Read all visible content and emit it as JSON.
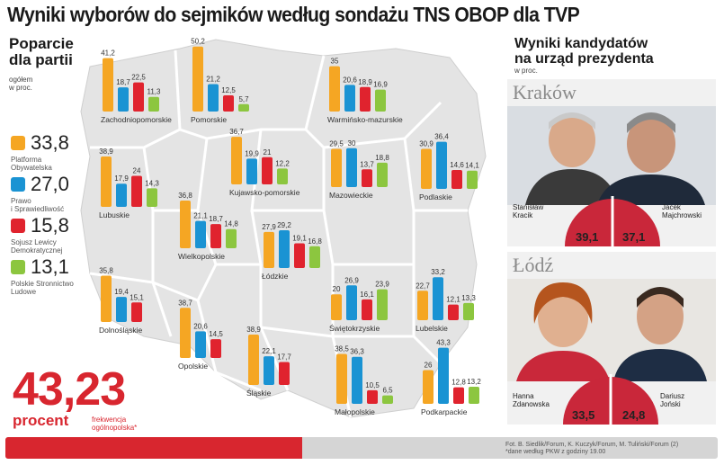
{
  "title": "Wyniki wyborów do sejmików według sondażu TNS OBOP dla TVP",
  "left_heading": [
    "Poparcie",
    "dla partii"
  ],
  "left_unit": [
    "ogółem",
    "w proc."
  ],
  "colors": {
    "po": "#f5a623",
    "pis": "#1a93d3",
    "sld": "#e0232e",
    "psl": "#8cc63f",
    "accent": "#d8262f"
  },
  "legend": [
    {
      "value": "33,8",
      "name": [
        "Platforma",
        "Obywatelska"
      ],
      "color": "#f5a623"
    },
    {
      "value": "27,0",
      "name": [
        "Prawo",
        "i Sprawiedliwość"
      ],
      "color": "#1a93d3"
    },
    {
      "value": "15,8",
      "name": [
        "Sojusz Lewicy",
        "Demokratycznej"
      ],
      "color": "#e0232e"
    },
    {
      "value": "13,1",
      "name": [
        "Polskie Stronnictwo",
        "Ludowe"
      ],
      "color": "#8cc63f"
    }
  ],
  "chart_data": {
    "type": "bar",
    "title": "Poparcie dla partii",
    "ylabel": "w proc.",
    "series_names": [
      "Platforma Obywatelska",
      "Prawo i Sprawiedliwość",
      "Sojusz Lewicy Demokratycznej",
      "Polskie Stronnictwo Ludowe"
    ],
    "regions": [
      {
        "name": "Zachodniopomorskie",
        "values": [
          41.2,
          18.7,
          22.5,
          11.3
        ],
        "labels": [
          "41,2",
          "18,7",
          "22,5",
          "11,3"
        ]
      },
      {
        "name": "Pomorskie",
        "values": [
          50.2,
          21.2,
          12.5,
          5.7
        ],
        "labels": [
          "50,2",
          "21,2",
          "12,5",
          "5,7"
        ]
      },
      {
        "name": "Warmińsko-mazurskie",
        "values": [
          35,
          20.6,
          18.9,
          16.9
        ],
        "labels": [
          "35",
          "20,6",
          "18,9",
          "16,9"
        ]
      },
      {
        "name": "Lubuskie",
        "values": [
          38.9,
          17.9,
          24,
          14.3
        ],
        "labels": [
          "38,9",
          "17,9",
          "24",
          "14,3"
        ]
      },
      {
        "name": "Kujawsko-pomorskie",
        "values": [
          36.7,
          19.9,
          21,
          12.2
        ],
        "labels": [
          "36,7",
          "19,9",
          "21",
          "12,2"
        ]
      },
      {
        "name": "Mazowieckie",
        "values": [
          29.5,
          30,
          13.7,
          18.8
        ],
        "labels": [
          "29,5",
          "30",
          "13,7",
          "18,8"
        ]
      },
      {
        "name": "Podlaskie",
        "values": [
          30.9,
          36.4,
          14.6,
          14.1
        ],
        "labels": [
          "30,9",
          "36,4",
          "14,6",
          "14,1"
        ]
      },
      {
        "name": "Wielkopolskie",
        "values": [
          36.8,
          21.1,
          18.7,
          14.8
        ],
        "labels": [
          "36,8",
          "21,1",
          "18,7",
          "14,8"
        ]
      },
      {
        "name": "Łódzkie",
        "values": [
          27.9,
          29.2,
          19.1,
          16.8
        ],
        "labels": [
          "27,9",
          "29,2",
          "19,1",
          "16,8"
        ]
      },
      {
        "name": "Dolnośląskie",
        "values": [
          35.8,
          19.4,
          15.1,
          null
        ],
        "labels": [
          "35,8",
          "19,4",
          "15,1",
          ""
        ]
      },
      {
        "name": "Świętokrzyskie",
        "values": [
          20,
          26.9,
          16.1,
          23.9
        ],
        "labels": [
          "20",
          "26,9",
          "16,1",
          "23,9"
        ]
      },
      {
        "name": "Lubelskie",
        "values": [
          22.7,
          33.2,
          12.1,
          13.3
        ],
        "labels": [
          "22,7",
          "33,2",
          "12,1",
          "13,3"
        ]
      },
      {
        "name": "Opolskie",
        "values": [
          38.7,
          20.6,
          14.5,
          null
        ],
        "labels": [
          "38,7",
          "20,6",
          "14,5",
          ""
        ]
      },
      {
        "name": "Śląskie",
        "values": [
          38.9,
          22.1,
          17.7,
          null
        ],
        "labels": [
          "38,9",
          "22,1",
          "17,7",
          ""
        ]
      },
      {
        "name": "Małopolskie",
        "values": [
          38.5,
          36.3,
          10.5,
          6.5
        ],
        "labels": [
          "38,5",
          "36,3",
          "10,5",
          "6,5"
        ]
      },
      {
        "name": "Podkarpackie",
        "values": [
          26,
          43.3,
          12.8,
          13.2
        ],
        "labels": [
          "26",
          "43,3",
          "12,8",
          "13,2"
        ]
      }
    ]
  },
  "right_heading": [
    "Wyniki kandydatów",
    "na urząd prezydenta"
  ],
  "right_unit": "w proc.",
  "cities": [
    {
      "city": "Kraków",
      "candidates": [
        {
          "first": "Stanisław",
          "last": "Kracik",
          "pct": "39,1"
        },
        {
          "first": "Jacek",
          "last": "Majchrowski",
          "pct": "37,1"
        }
      ]
    },
    {
      "city": "Łódź",
      "candidates": [
        {
          "first": "Hanna",
          "last": "Zdanowska",
          "pct": "33,5"
        },
        {
          "first": "Dariusz",
          "last": "Joński",
          "pct": "24,8"
        }
      ]
    }
  ],
  "turnout": {
    "value": "43,23",
    "unit": "procent",
    "label": [
      "frekwencja",
      "ogólnopolska*"
    ]
  },
  "footer": {
    "credit": "Fot. B. Siedlik/Forum, K. Kuczyk/Forum, M. Tuliński/Forum (2)",
    "note": "*dane według PKW z godziny 19.00"
  }
}
